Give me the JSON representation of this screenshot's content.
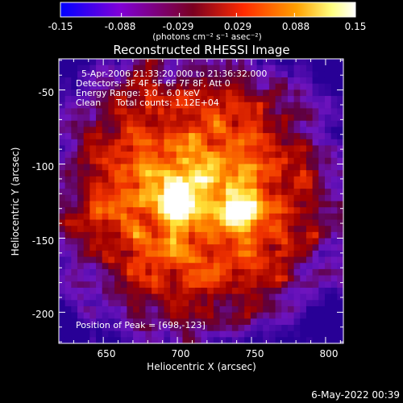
{
  "colorbar": {
    "tick_labels": [
      "-0.15",
      "-0.088",
      "-0.029",
      "0.029",
      "0.088",
      "0.15"
    ],
    "tick_values": [
      -0.15,
      -0.088,
      -0.029,
      0.029,
      0.088,
      0.15
    ],
    "range": [
      -0.15,
      0.15
    ],
    "units": "(photons cm⁻² s⁻¹ asec⁻²)",
    "colormap": [
      "#0000ff",
      "#8000d8",
      "#7a0020",
      "#ff2a00",
      "#ffa000",
      "#ffff80",
      "#ffffff"
    ]
  },
  "plot": {
    "title": "Reconstructed RHESSI Image",
    "xlabel": "Heliocentric X (arcsec)",
    "ylabel": "Heliocentric Y (arcsec)",
    "xticks": [
      "650",
      "700",
      "750",
      "800"
    ],
    "yticks": [
      "-50",
      "-100",
      "-150",
      "-200"
    ],
    "xrange": [
      620,
      812
    ],
    "yrange": [
      -221,
      -29
    ],
    "peak_points": [
      [
        698,
        -123
      ],
      [
        743,
        -134
      ]
    ]
  },
  "overlay": {
    "line1": "5-Apr-2006 21:33:20.000 to 21:36:32.000",
    "line2": "Detectors: 3F 4F 5F 6F 7F 8F, Att 0",
    "line3": "Energy Range: 3.0 - 6.0 keV",
    "line4_a": "Clean",
    "line4_b": "Total counts: 1.12E+04",
    "peak": "Position of Peak = [698,-123]"
  },
  "footer": {
    "date": "6-May-2022 00:39"
  }
}
